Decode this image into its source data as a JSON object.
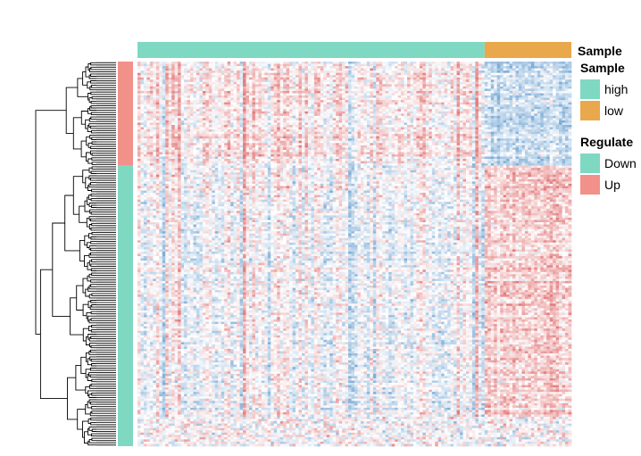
{
  "chart_data": {
    "type": "heatmap",
    "column_annotation": {
      "title": "Sample",
      "groups": [
        {
          "label": "high",
          "color": "#7fd8c2",
          "fraction": 0.8
        },
        {
          "label": "low",
          "color": "#e9a84c",
          "fraction": 0.2
        }
      ]
    },
    "row_annotation": {
      "title": "Regulate",
      "groups": [
        {
          "label": "Up",
          "color": "#f2908a",
          "fraction": 0.27
        },
        {
          "label": "Down",
          "color": "#7fd8c2",
          "fraction": 0.73
        }
      ]
    },
    "legends": [
      {
        "title": "Sample",
        "items": [
          {
            "label": "high",
            "color": "#7fd8c2"
          },
          {
            "label": "low",
            "color": "#e9a84c"
          }
        ]
      },
      {
        "title": "Regulate",
        "items": [
          {
            "label": "Down",
            "color": "#7fd8c2"
          },
          {
            "label": "Up",
            "color": "#f2908a"
          }
        ]
      }
    ],
    "color_scale": {
      "low": "#4f8fc8",
      "mid": "#ffffff",
      "high": "#d9494a"
    },
    "row_dendrogram": true,
    "column_dendrogram": false,
    "legend_position": "right",
    "pattern": [
      {
        "rows": "Up",
        "columns": "high",
        "tendency": "mostly up (red)"
      },
      {
        "rows": "Up",
        "columns": "low",
        "tendency": "mostly down (blue)"
      },
      {
        "rows": "Down",
        "columns": "high",
        "tendency": "mixed, slightly blue"
      },
      {
        "rows": "Down",
        "columns": "low",
        "tendency": "mostly up (red)"
      }
    ]
  }
}
